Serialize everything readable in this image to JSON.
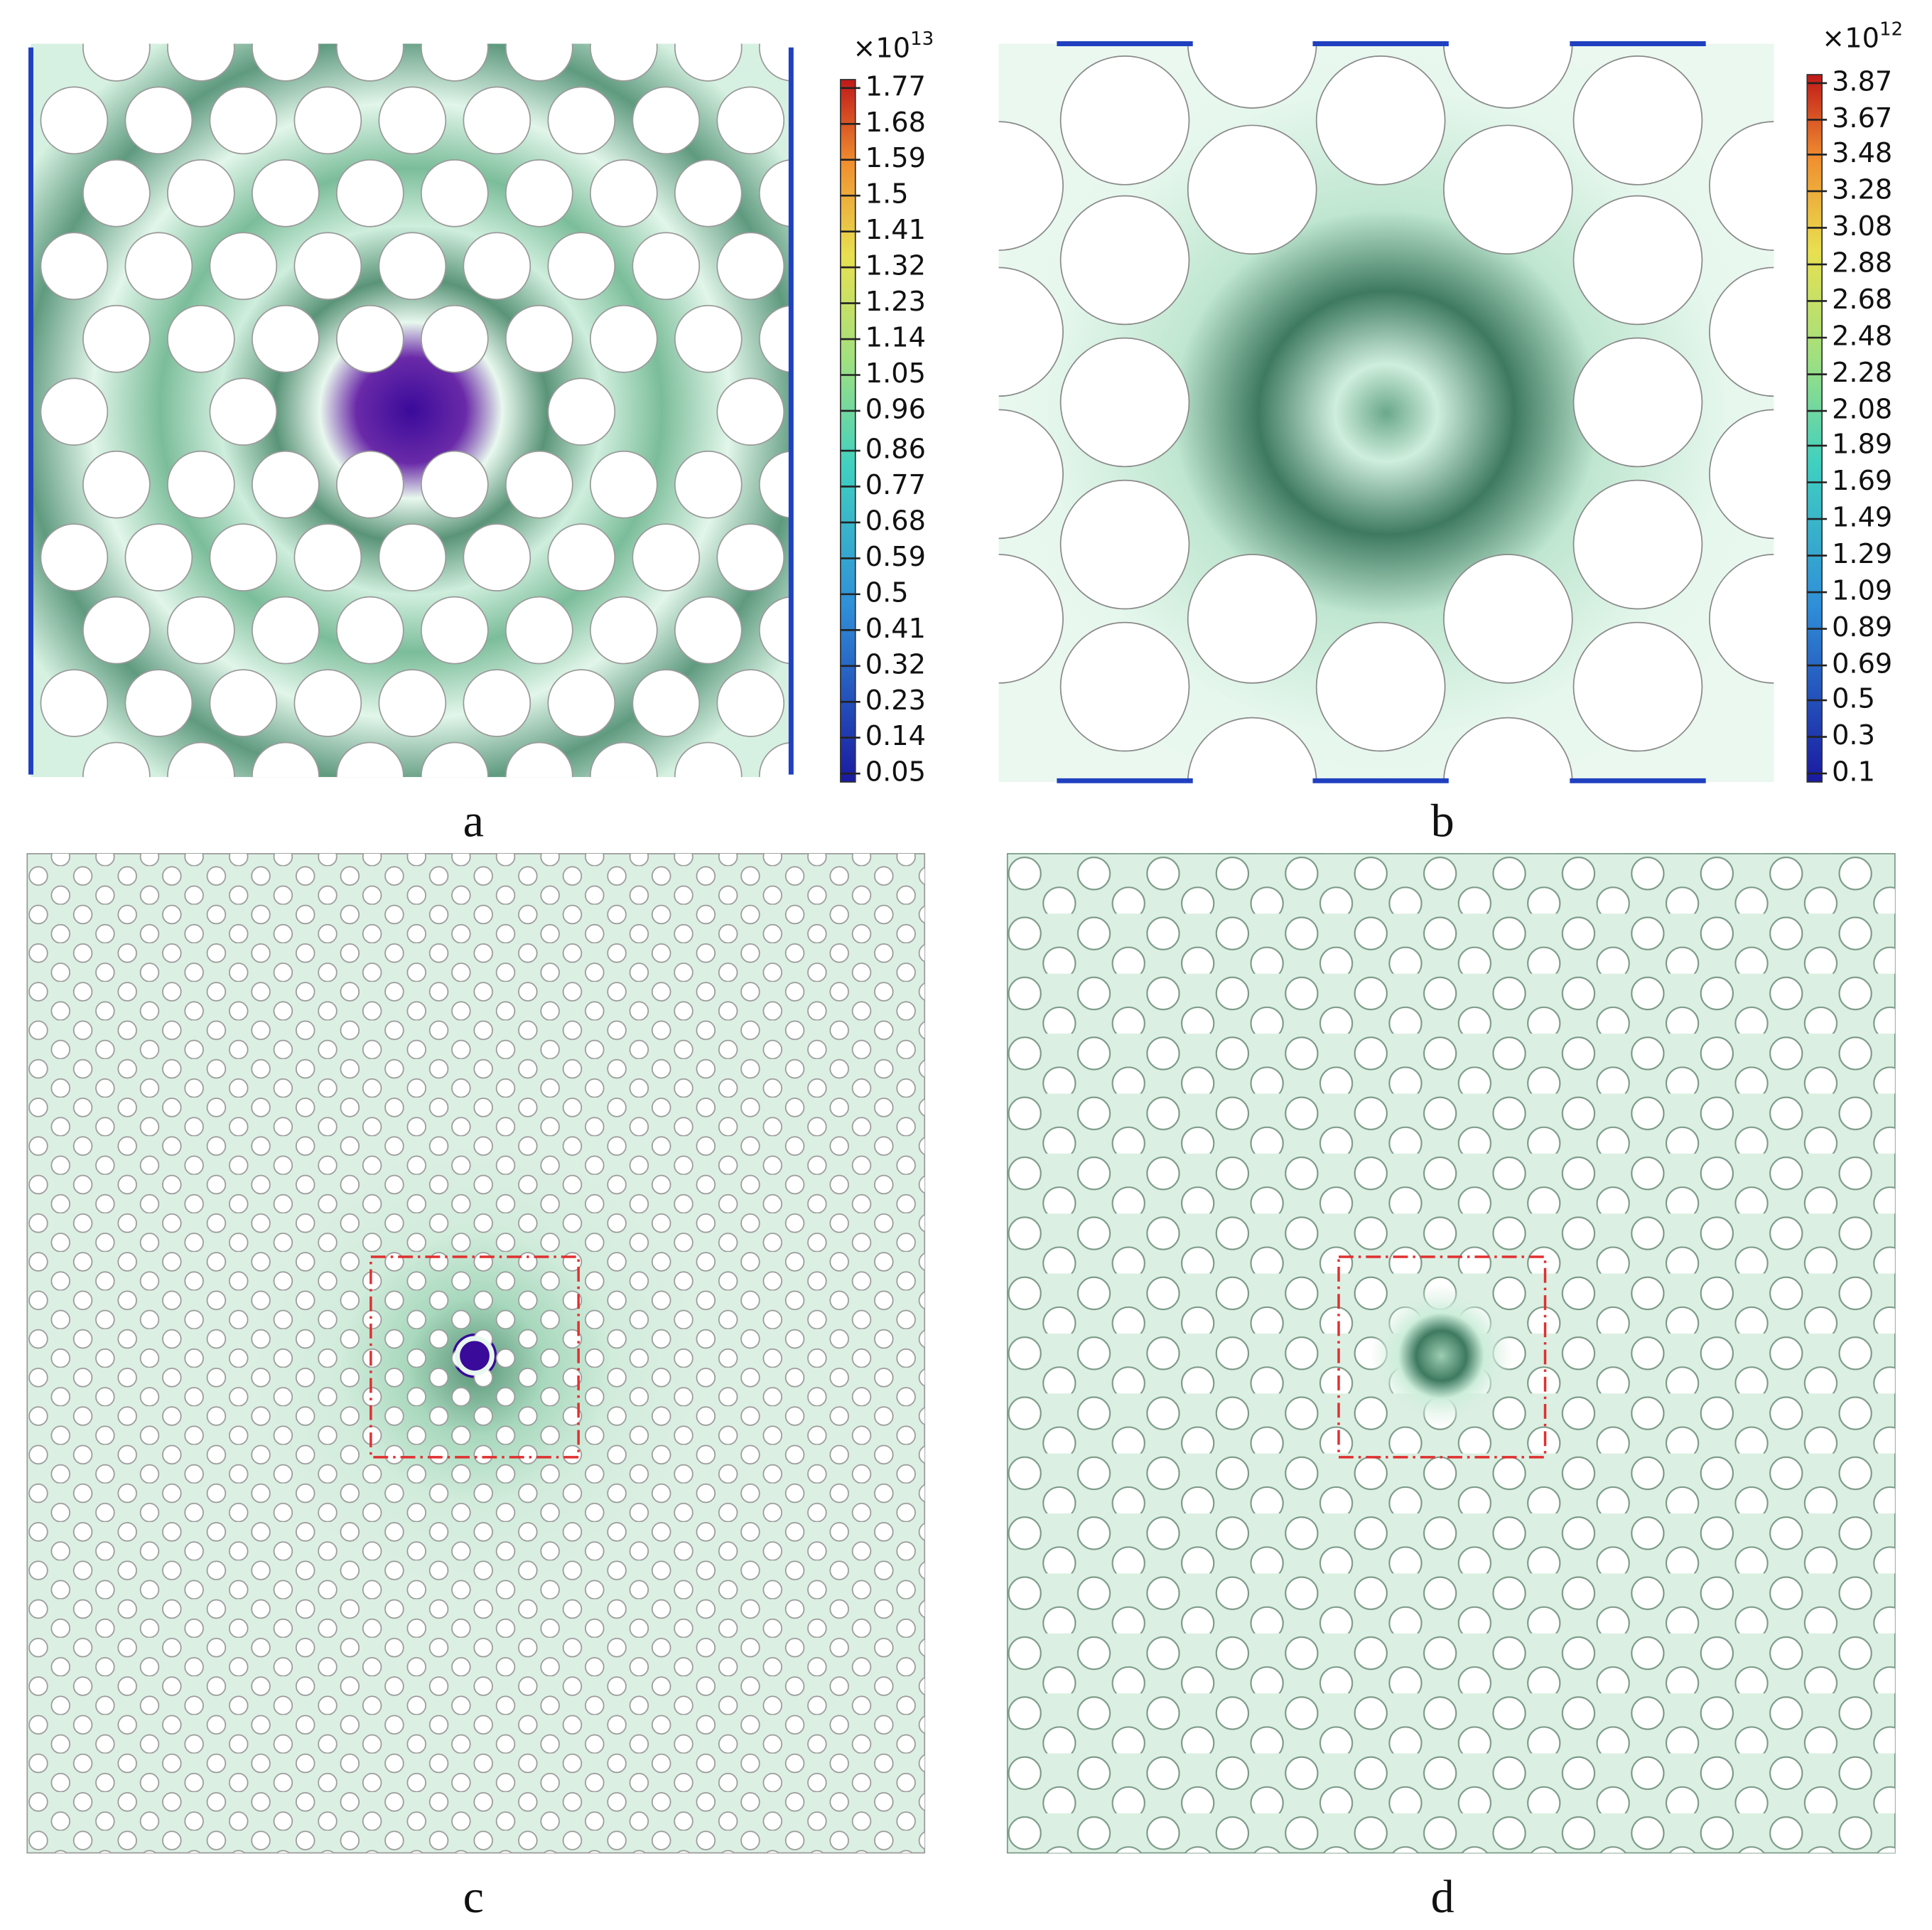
{
  "panels": [
    {
      "label": "a",
      "colorbar": {
        "multiplier": "×10",
        "exponent": "13",
        "ticks": [
          1.77,
          1.68,
          1.59,
          1.5,
          1.41,
          1.32,
          1.23,
          1.14,
          1.05,
          0.96,
          0.86,
          0.77,
          0.68,
          0.59,
          0.5,
          0.41,
          0.32,
          0.23,
          0.14,
          0.05
        ]
      }
    },
    {
      "label": "b",
      "colorbar": {
        "multiplier": "×10",
        "exponent": "12",
        "ticks": [
          3.87,
          3.67,
          3.48,
          3.28,
          3.08,
          2.88,
          2.68,
          2.48,
          2.28,
          2.08,
          1.89,
          1.69,
          1.49,
          1.29,
          1.09,
          0.89,
          0.69,
          0.5,
          0.3,
          0.1
        ]
      }
    },
    {
      "label": "c"
    },
    {
      "label": "d"
    }
  ]
}
